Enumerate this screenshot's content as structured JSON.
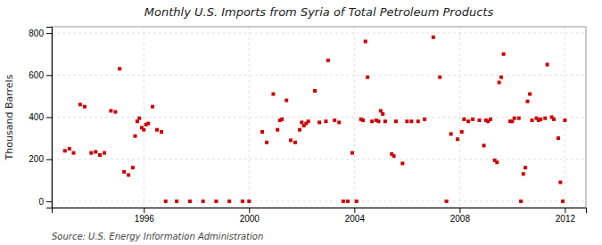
{
  "chart_data": {
    "type": "scatter",
    "title": "Monthly U.S. Imports from Syria of Total Petroleum Products",
    "ylabel": "Thousand Barrels",
    "annotations": [
      "Source: U.S. Energy Information Administration"
    ],
    "color": "#cc0000",
    "marker": "square",
    "grid": true,
    "xlim": [
      1992.5,
      2012.8
    ],
    "ylim": [
      -30,
      830
    ],
    "xticks": [
      1996,
      2000,
      2004,
      2008,
      2012
    ],
    "yticks": [
      0,
      200,
      400,
      600,
      800
    ],
    "x": [
      1993.0,
      1993.17,
      1993.33,
      1993.58,
      1993.75,
      1994.0,
      1994.17,
      1994.33,
      1994.5,
      1994.75,
      1994.92,
      1995.08,
      1995.25,
      1995.42,
      1995.58,
      1995.67,
      1995.75,
      1995.83,
      1995.92,
      1996.0,
      1996.08,
      1996.17,
      1996.33,
      1996.5,
      1996.67,
      1996.83,
      1997.25,
      1997.75,
      1998.25,
      1998.75,
      1999.25,
      1999.75,
      2000.0,
      2000.5,
      2000.67,
      2000.92,
      2001.08,
      2001.17,
      2001.25,
      2001.42,
      2001.58,
      2001.75,
      2001.92,
      2002.0,
      2002.08,
      2002.17,
      2002.25,
      2002.5,
      2002.67,
      2002.92,
      2003.0,
      2003.25,
      2003.42,
      2003.58,
      2003.75,
      2003.92,
      2004.08,
      2004.25,
      2004.33,
      2004.42,
      2004.5,
      2004.67,
      2004.83,
      2004.92,
      2005.0,
      2005.08,
      2005.17,
      2005.42,
      2005.5,
      2005.58,
      2005.83,
      2006.0,
      2006.17,
      2006.42,
      2006.67,
      2007.0,
      2007.25,
      2007.5,
      2007.67,
      2007.92,
      2008.08,
      2008.17,
      2008.33,
      2008.5,
      2008.75,
      2008.92,
      2009.0,
      2009.08,
      2009.17,
      2009.33,
      2009.42,
      2009.5,
      2009.58,
      2009.67,
      2009.92,
      2010.0,
      2010.08,
      2010.25,
      2010.33,
      2010.42,
      2010.5,
      2010.58,
      2010.67,
      2010.75,
      2010.92,
      2011.0,
      2011.08,
      2011.25,
      2011.33,
      2011.5,
      2011.58,
      2011.75,
      2011.83,
      2011.92,
      2012.0
    ],
    "values": [
      240,
      250,
      230,
      460,
      450,
      230,
      235,
      220,
      230,
      430,
      425,
      630,
      140,
      125,
      160,
      310,
      380,
      395,
      350,
      340,
      365,
      370,
      450,
      340,
      330,
      0,
      0,
      0,
      0,
      0,
      0,
      0,
      0,
      330,
      280,
      510,
      340,
      385,
      390,
      480,
      290,
      280,
      340,
      375,
      360,
      370,
      380,
      525,
      375,
      380,
      670,
      385,
      375,
      0,
      0,
      230,
      0,
      390,
      385,
      760,
      590,
      380,
      385,
      380,
      430,
      415,
      380,
      225,
      215,
      380,
      180,
      380,
      380,
      380,
      390,
      780,
      590,
      0,
      320,
      295,
      330,
      390,
      380,
      390,
      385,
      265,
      385,
      380,
      390,
      195,
      185,
      565,
      590,
      700,
      380,
      380,
      395,
      395,
      0,
      130,
      160,
      475,
      510,
      385,
      395,
      385,
      390,
      395,
      650,
      400,
      390,
      300,
      90,
      0,
      385
    ]
  }
}
